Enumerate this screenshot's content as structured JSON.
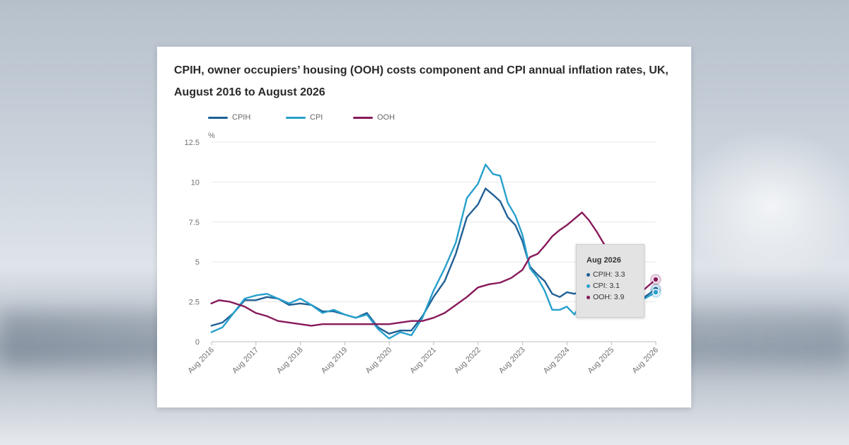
{
  "chart_data": {
    "type": "line",
    "title": "CPIH, owner occupiers’ housing (OOH) costs component and CPI annual inflation rates, UK, August 2016 to August 2026",
    "ylabel": "%",
    "ylim": [
      0,
      12.5
    ],
    "yticks": [
      "0",
      "2.5",
      "5",
      "7.5",
      "10",
      "12.5"
    ],
    "xlim": [
      2016.583,
      2026.583
    ],
    "xticks": [
      {
        "label": "Aug 2016",
        "x": 2016.583
      },
      {
        "label": "Aug 2017",
        "x": 2017.583
      },
      {
        "label": "Aug 2018",
        "x": 2018.583
      },
      {
        "label": "Aug 2019",
        "x": 2019.583
      },
      {
        "label": "Aug 2020",
        "x": 2020.583
      },
      {
        "label": "Aug 2021",
        "x": 2021.583
      },
      {
        "label": "Aug 2022",
        "x": 2022.583
      },
      {
        "label": "Aug 2023",
        "x": 2023.583
      },
      {
        "label": "Aug 2024",
        "x": 2024.583
      },
      {
        "label": "Aug 2025",
        "x": 2025.583
      },
      {
        "label": "Aug 2026",
        "x": 2026.583
      }
    ],
    "grid": true,
    "legend_position": "top-left",
    "series": [
      {
        "name": "CPIH",
        "color": "#206095",
        "points": [
          [
            2016.58,
            1.0
          ],
          [
            2016.83,
            1.2
          ],
          [
            2017.08,
            1.8
          ],
          [
            2017.33,
            2.6
          ],
          [
            2017.58,
            2.6
          ],
          [
            2017.83,
            2.8
          ],
          [
            2018.08,
            2.7
          ],
          [
            2018.33,
            2.3
          ],
          [
            2018.58,
            2.4
          ],
          [
            2018.83,
            2.3
          ],
          [
            2019.08,
            1.9
          ],
          [
            2019.33,
            1.9
          ],
          [
            2019.58,
            1.7
          ],
          [
            2019.83,
            1.5
          ],
          [
            2020.08,
            1.8
          ],
          [
            2020.33,
            0.9
          ],
          [
            2020.58,
            0.5
          ],
          [
            2020.83,
            0.7
          ],
          [
            2021.08,
            0.7
          ],
          [
            2021.33,
            1.6
          ],
          [
            2021.58,
            2.8
          ],
          [
            2021.83,
            3.8
          ],
          [
            2022.08,
            5.5
          ],
          [
            2022.33,
            7.8
          ],
          [
            2022.58,
            8.6
          ],
          [
            2022.75,
            9.6
          ],
          [
            2022.92,
            9.2
          ],
          [
            2023.08,
            8.8
          ],
          [
            2023.25,
            7.8
          ],
          [
            2023.42,
            7.3
          ],
          [
            2023.58,
            6.3
          ],
          [
            2023.75,
            4.7
          ],
          [
            2023.92,
            4.2
          ],
          [
            2024.08,
            3.8
          ],
          [
            2024.25,
            3.0
          ],
          [
            2024.42,
            2.8
          ],
          [
            2024.58,
            3.1
          ],
          [
            2024.75,
            3.0
          ],
          [
            2024.92,
            3.2
          ],
          [
            2025.08,
            3.7
          ],
          [
            2025.25,
            4.1
          ],
          [
            2025.42,
            4.1
          ],
          [
            2025.58,
            3.8
          ],
          [
            2025.83,
            3.3
          ],
          [
            2026.08,
            3.2
          ],
          [
            2026.33,
            2.8
          ],
          [
            2026.58,
            3.3
          ]
        ]
      },
      {
        "name": "CPI",
        "color": "#27a0cc",
        "points": [
          [
            2016.58,
            0.6
          ],
          [
            2016.83,
            0.9
          ],
          [
            2017.08,
            1.8
          ],
          [
            2017.33,
            2.7
          ],
          [
            2017.58,
            2.9
          ],
          [
            2017.83,
            3.0
          ],
          [
            2018.08,
            2.7
          ],
          [
            2018.33,
            2.4
          ],
          [
            2018.58,
            2.7
          ],
          [
            2018.83,
            2.3
          ],
          [
            2019.08,
            1.8
          ],
          [
            2019.33,
            2.0
          ],
          [
            2019.58,
            1.7
          ],
          [
            2019.83,
            1.5
          ],
          [
            2020.08,
            1.7
          ],
          [
            2020.33,
            0.8
          ],
          [
            2020.58,
            0.2
          ],
          [
            2020.83,
            0.6
          ],
          [
            2021.08,
            0.4
          ],
          [
            2021.33,
            1.5
          ],
          [
            2021.58,
            3.2
          ],
          [
            2021.83,
            4.6
          ],
          [
            2022.08,
            6.2
          ],
          [
            2022.33,
            9.0
          ],
          [
            2022.58,
            9.9
          ],
          [
            2022.75,
            11.1
          ],
          [
            2022.92,
            10.5
          ],
          [
            2023.08,
            10.4
          ],
          [
            2023.25,
            8.7
          ],
          [
            2023.42,
            7.9
          ],
          [
            2023.58,
            6.7
          ],
          [
            2023.75,
            4.6
          ],
          [
            2023.92,
            4.0
          ],
          [
            2024.08,
            3.2
          ],
          [
            2024.25,
            2.0
          ],
          [
            2024.42,
            2.0
          ],
          [
            2024.58,
            2.2
          ],
          [
            2024.75,
            1.7
          ],
          [
            2024.92,
            2.5
          ],
          [
            2025.08,
            3.0
          ],
          [
            2025.25,
            3.4
          ],
          [
            2025.42,
            3.6
          ],
          [
            2025.58,
            3.8
          ],
          [
            2025.83,
            3.4
          ],
          [
            2026.08,
            3.0
          ],
          [
            2026.33,
            2.7
          ],
          [
            2026.58,
            3.1
          ]
        ]
      },
      {
        "name": "OOH",
        "color": "#871a5b",
        "points": [
          [
            2016.58,
            2.4
          ],
          [
            2016.75,
            2.6
          ],
          [
            2017.0,
            2.5
          ],
          [
            2017.33,
            2.2
          ],
          [
            2017.58,
            1.8
          ],
          [
            2017.83,
            1.6
          ],
          [
            2018.08,
            1.3
          ],
          [
            2018.58,
            1.1
          ],
          [
            2018.83,
            1.0
          ],
          [
            2019.08,
            1.1
          ],
          [
            2019.58,
            1.1
          ],
          [
            2020.08,
            1.1
          ],
          [
            2020.58,
            1.1
          ],
          [
            2020.83,
            1.2
          ],
          [
            2021.08,
            1.3
          ],
          [
            2021.33,
            1.3
          ],
          [
            2021.58,
            1.5
          ],
          [
            2021.83,
            1.8
          ],
          [
            2022.08,
            2.3
          ],
          [
            2022.33,
            2.8
          ],
          [
            2022.58,
            3.4
          ],
          [
            2022.83,
            3.6
          ],
          [
            2023.08,
            3.7
          ],
          [
            2023.33,
            4.0
          ],
          [
            2023.58,
            4.5
          ],
          [
            2023.75,
            5.3
          ],
          [
            2023.92,
            5.5
          ],
          [
            2024.08,
            6.0
          ],
          [
            2024.25,
            6.6
          ],
          [
            2024.42,
            7.0
          ],
          [
            2024.58,
            7.3
          ],
          [
            2024.75,
            7.7
          ],
          [
            2024.92,
            8.1
          ],
          [
            2025.08,
            7.6
          ],
          [
            2025.25,
            6.9
          ],
          [
            2025.42,
            6.1
          ],
          [
            2025.58,
            5.3
          ],
          [
            2025.83,
            4.6
          ],
          [
            2026.08,
            3.9
          ],
          [
            2026.33,
            3.3
          ],
          [
            2026.58,
            3.9
          ]
        ]
      }
    ],
    "tooltip": {
      "title": "Aug 2026",
      "rows": [
        {
          "label": "CPIH: 3.3",
          "color": "#206095"
        },
        {
          "label": "CPI: 3.1",
          "color": "#27a0cc"
        },
        {
          "label": "OOH: 3.9",
          "color": "#871a5b"
        }
      ]
    }
  }
}
